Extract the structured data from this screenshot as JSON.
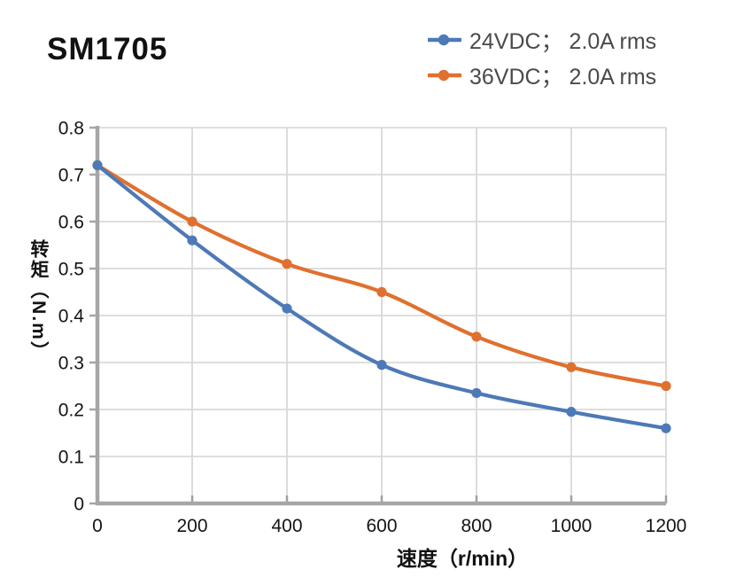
{
  "title": "SM1705",
  "chart_data": {
    "type": "line",
    "title": "SM1705",
    "x": [
      0,
      200,
      400,
      600,
      800,
      1000,
      1200
    ],
    "series": [
      {
        "name": "24VDC； 2.0A rms",
        "color": "#4E79B7",
        "values": [
          0.72,
          0.56,
          0.415,
          0.295,
          0.235,
          0.195,
          0.16
        ]
      },
      {
        "name": "36VDC； 2.0A rms",
        "color": "#E0702F",
        "values": [
          0.72,
          0.6,
          0.51,
          0.45,
          0.355,
          0.29,
          0.25
        ]
      }
    ],
    "xlabel": "速度（r/min）",
    "ylabel": "转矩（N.m）",
    "xlim": [
      0,
      1200
    ],
    "ylim": [
      0,
      0.8
    ],
    "x_ticks": [
      0,
      200,
      400,
      600,
      800,
      1000,
      1200
    ],
    "y_ticks": [
      0,
      0.1,
      0.2,
      0.3,
      0.4,
      0.5,
      0.6,
      0.7,
      0.8
    ],
    "grid": true,
    "legend_position": "top-right",
    "marker": "circle",
    "line_smoothing": true
  },
  "style": {
    "background": "#ffffff",
    "axis_color": "#a6a6a6",
    "grid_color": "#d9d9d9",
    "tick_color": "#a0a0a0",
    "tick_label_color": "#141414",
    "axis_title_color": "#111111",
    "legend_text_color": "#4a4a4a",
    "title_color": "#111111"
  }
}
